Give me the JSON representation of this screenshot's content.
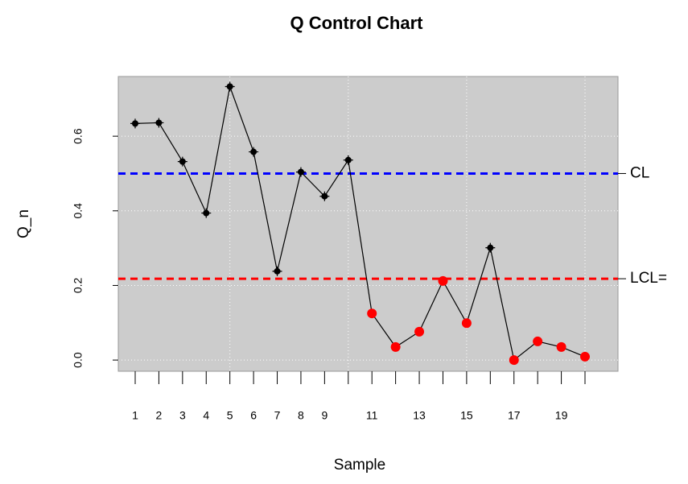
{
  "chart_data": {
    "type": "line",
    "title": "Q Control Chart",
    "x_label": "Sample",
    "y_label": "Q_n",
    "categories": [
      "1",
      "2",
      "3",
      "4",
      "5",
      "6",
      "7",
      "8",
      "9",
      null,
      "11",
      null,
      "13",
      null,
      "15",
      null,
      "17",
      null,
      "19",
      null
    ],
    "series": [
      {
        "color": "#000000",
        "values": [
          0.634,
          0.636,
          0.532,
          0.394,
          0.733,
          0.558,
          0.238,
          0.504,
          0.439,
          0.536,
          0.125,
          0.035,
          0.076,
          0.212,
          0.099,
          0.301,
          0.0,
          0.05,
          0.035,
          0.009
        ]
      }
    ],
    "out_of_control_color": "#ff0000",
    "control_limits": [
      {
        "name": "CL",
        "value": 0.5,
        "color": "#0000ff"
      },
      {
        "name": "LCL=",
        "value": 0.218,
        "color": "#ff0000"
      }
    ],
    "ylim": [
      -0.03,
      0.76
    ],
    "yticks": [
      {
        "value": 0,
        "label": "0.0"
      },
      0.2,
      0.4,
      0.6
    ],
    "xgrid": [
      5,
      10,
      15,
      20
    ],
    "grid": true,
    "background": "#cccccc"
  }
}
